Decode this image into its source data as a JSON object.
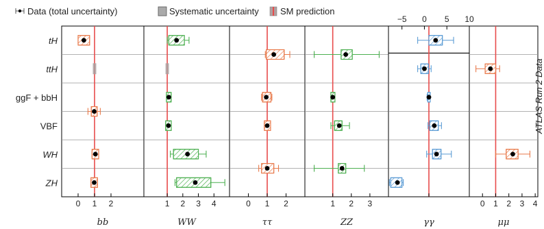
{
  "chart_data": {
    "type": "forest",
    "legend": {
      "data": "Data (total uncertainty)",
      "syst": "Systematic uncertainty",
      "sm": "SM prediction"
    },
    "side_label": "ATLAS Run 2 Data",
    "production_modes": [
      "tH",
      "ttH",
      "ggF + bbH",
      "VBF",
      "WH",
      "ZH"
    ],
    "channels": [
      {
        "name": "bb",
        "xlim": [
          -1.0,
          4.0
        ],
        "ticks": [
          0,
          1,
          2
        ],
        "color": "#e8794a",
        "points": [
          {
            "row": 0,
            "value": 0.35,
            "stat_lo": 0.0,
            "stat_hi": 0.7,
            "syst_lo": 0.05,
            "syst_hi": 0.65,
            "tot_lo": 0.0,
            "tot_hi": 0.7
          },
          {
            "row": 2.5,
            "value": 0.98,
            "stat_lo": 0.8,
            "stat_hi": 1.16,
            "syst_lo": 0.85,
            "syst_hi": 1.1,
            "tot_lo": 0.6,
            "tot_hi": 1.35
          },
          {
            "row": 4,
            "value": 1.05,
            "stat_lo": 0.85,
            "stat_hi": 1.25,
            "syst_lo": 0.9,
            "syst_hi": 1.2,
            "tot_lo": 0.85,
            "tot_hi": 1.25
          },
          {
            "row": 5,
            "value": 0.98,
            "stat_lo": 0.78,
            "stat_hi": 1.18,
            "syst_lo": 0.83,
            "syst_hi": 1.12,
            "tot_lo": 0.78,
            "tot_hi": 1.18
          }
        ]
      },
      {
        "name": "WW",
        "xlim": [
          -0.5,
          5.0
        ],
        "ticks": [
          1,
          2,
          3,
          4
        ],
        "color": "#4caf50",
        "points": [
          {
            "row": 0,
            "value": 1.6,
            "stat_lo": 1.1,
            "stat_hi": 2.1,
            "syst_lo": 1.15,
            "syst_hi": 2.05,
            "tot_lo": 1.0,
            "tot_hi": 2.4
          },
          {
            "row": 2,
            "value": 1.1,
            "stat_lo": 0.95,
            "stat_hi": 1.25,
            "syst_lo": 0.97,
            "syst_hi": 1.22,
            "tot_lo": 0.95,
            "tot_hi": 1.25
          },
          {
            "row": 3,
            "value": 1.08,
            "stat_lo": 0.9,
            "stat_hi": 1.26,
            "syst_lo": 0.92,
            "syst_hi": 1.24,
            "tot_lo": 0.9,
            "tot_hi": 1.26
          },
          {
            "row": 4,
            "value": 2.3,
            "stat_lo": 1.4,
            "stat_hi": 3.0,
            "syst_lo": 1.55,
            "syst_hi": 2.95,
            "tot_lo": 1.2,
            "tot_hi": 3.5
          },
          {
            "row": 5,
            "value": 2.8,
            "stat_lo": 1.6,
            "stat_hi": 3.8,
            "syst_lo": 1.75,
            "syst_hi": 3.65,
            "tot_lo": 1.5,
            "tot_hi": 4.7
          }
        ]
      },
      {
        "name": "ττ",
        "xlim": [
          -1.0,
          3.0
        ],
        "ticks": [
          0,
          1,
          2
        ],
        "color": "#e8794a",
        "points": [
          {
            "row": 0.5,
            "value": 1.35,
            "stat_lo": 0.95,
            "stat_hi": 1.9,
            "syst_lo": 1.0,
            "syst_hi": 1.85,
            "tot_lo": 0.9,
            "tot_hi": 2.2
          },
          {
            "row": 2,
            "value": 0.95,
            "stat_lo": 0.75,
            "stat_hi": 1.2,
            "syst_lo": 0.8,
            "syst_hi": 1.15,
            "tot_lo": 0.7,
            "tot_hi": 1.25
          },
          {
            "row": 3,
            "value": 1.0,
            "stat_lo": 0.85,
            "stat_hi": 1.18,
            "syst_lo": 0.87,
            "syst_hi": 1.15,
            "tot_lo": 0.85,
            "tot_hi": 1.18
          },
          {
            "row": 4.5,
            "value": 1.0,
            "stat_lo": 0.7,
            "stat_hi": 1.35,
            "syst_lo": 0.75,
            "syst_hi": 1.3,
            "tot_lo": 0.55,
            "tot_hi": 1.6
          }
        ]
      },
      {
        "name": "ZZ",
        "xlim": [
          -0.5,
          4.0
        ],
        "ticks": [
          1,
          2,
          3
        ],
        "color": "#4caf50",
        "points": [
          {
            "row": 0.5,
            "value": 1.7,
            "stat_lo": 1.45,
            "stat_hi": 2.05,
            "syst_lo": 1.5,
            "syst_hi": 2.0,
            "tot_lo": 0.0,
            "tot_hi": 3.5
          },
          {
            "row": 2,
            "value": 1.0,
            "stat_lo": 0.9,
            "stat_hi": 1.12,
            "syst_lo": 0.92,
            "syst_hi": 1.08,
            "tot_lo": 0.9,
            "tot_hi": 1.12
          },
          {
            "row": 3,
            "value": 1.35,
            "stat_lo": 1.1,
            "stat_hi": 1.5,
            "syst_lo": 1.12,
            "syst_hi": 1.45,
            "tot_lo": 0.9,
            "tot_hi": 1.9
          },
          {
            "row": 4.5,
            "value": 1.5,
            "stat_lo": 1.3,
            "stat_hi": 1.7,
            "syst_lo": 1.32,
            "syst_hi": 1.68,
            "tot_lo": 0.0,
            "tot_hi": 2.7
          }
        ]
      },
      {
        "name": "γγ",
        "xlim": [
          -8.0,
          10.0
        ],
        "ticks": [
          -5,
          0,
          5,
          10
        ],
        "tick_side": "top",
        "bottom_ticks": [
          1
        ],
        "color": "#5a9bd4",
        "points": [
          {
            "row": 0,
            "value": 2.5,
            "stat_lo": 1.0,
            "stat_hi": 4.0,
            "syst_lo": 1.2,
            "syst_hi": 3.8,
            "tot_lo": -1.5,
            "tot_hi": 6.5
          },
          {
            "row": 1,
            "value": 0.0,
            "stat_lo": -0.8,
            "stat_hi": 0.9,
            "syst_lo": -0.5,
            "syst_hi": 0.6,
            "tot_lo": -1.5,
            "tot_hi": 1.5
          },
          {
            "row": 2,
            "value": 1.0,
            "stat_lo": 0.75,
            "stat_hi": 1.3,
            "syst_lo": 0.8,
            "syst_hi": 1.2,
            "tot_lo": 0.6,
            "tot_hi": 1.3
          },
          {
            "row": 3,
            "value": 2.2,
            "stat_lo": 1.2,
            "stat_hi": 3.1,
            "syst_lo": 1.3,
            "syst_hi": 3.0,
            "tot_lo": 0.8,
            "tot_hi": 3.8
          },
          {
            "row": 4,
            "value": 2.7,
            "stat_lo": 1.8,
            "stat_hi": 3.7,
            "syst_lo": 2.0,
            "syst_hi": 3.5,
            "tot_lo": 0.5,
            "tot_hi": 6.0
          },
          {
            "row": 5,
            "value": -6.0,
            "stat_lo": -7.5,
            "stat_hi": -5.0,
            "syst_lo": -7.3,
            "syst_hi": -5.2,
            "tot_lo": -7.8,
            "tot_hi": -4.7
          }
        ]
      },
      {
        "name": "μμ",
        "xlim": [
          -1.0,
          4.2
        ],
        "ticks": [
          0,
          1,
          2,
          3,
          4
        ],
        "color": "#e8794a",
        "points": [
          {
            "row": 1,
            "value": 0.6,
            "stat_lo": 0.2,
            "stat_hi": 1.0,
            "syst_lo": 0.3,
            "syst_hi": 0.9,
            "tot_lo": -0.5,
            "tot_hi": 1.3
          },
          {
            "row": 4,
            "value": 2.3,
            "stat_lo": 1.8,
            "stat_hi": 2.7,
            "syst_lo": 1.9,
            "syst_hi": 2.6,
            "tot_lo": 1.0,
            "tot_hi": 3.6
          }
        ]
      }
    ]
  }
}
